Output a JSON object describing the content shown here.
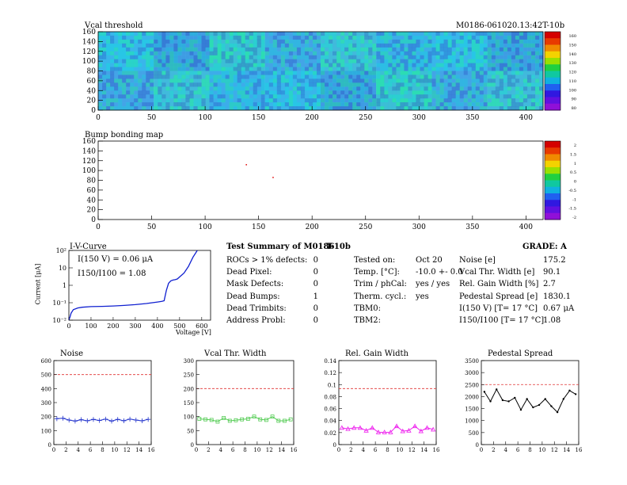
{
  "vcal_map": {
    "title": "Vcal threshold",
    "module_id": "M0186-061020.13:42T-10b",
    "x_ticks": [
      "0",
      "50",
      "100",
      "150",
      "200",
      "250",
      "300",
      "350",
      "400"
    ],
    "y_ticks": [
      "0",
      "20",
      "40",
      "60",
      "80",
      "100",
      "120",
      "140",
      "160"
    ],
    "xlim": [
      0,
      416
    ],
    "ylim": [
      0,
      160
    ],
    "palette_labels": [
      "160",
      "150",
      "140",
      "130",
      "120",
      "110",
      "100",
      "90",
      "80"
    ]
  },
  "bump_map": {
    "title": "Bump bonding map",
    "x_ticks": [
      "0",
      "50",
      "100",
      "150",
      "200",
      "250",
      "300",
      "350",
      "400"
    ],
    "y_ticks": [
      "0",
      "20",
      "40",
      "60",
      "80",
      "100",
      "120",
      "140",
      "160"
    ],
    "palette_labels": [
      "2",
      "1.5",
      "1",
      "0.5",
      "0",
      "-0.5",
      "-1",
      "-1.5",
      "-2"
    ],
    "hits": [
      {
        "x": 138,
        "y": 113
      },
      {
        "x": 163,
        "y": 87
      }
    ]
  },
  "iv_curve": {
    "title": "I-V-Curve",
    "ylabel": "Current [μA]",
    "xlabel": "Voltage [V]",
    "annotation_1": "I(150 V) = 0.06 μA",
    "annotation_2": "I150/I100 = 1.08",
    "x_ticks": [
      "0",
      "100",
      "200",
      "300",
      "400",
      "500",
      "600"
    ],
    "y_ticks": [
      "10²",
      "10",
      "1",
      "10⁻¹",
      "10⁻²"
    ],
    "chart_data": {
      "type": "line",
      "x": [
        0,
        5,
        10,
        20,
        40,
        60,
        100,
        150,
        200,
        250,
        300,
        350,
        400,
        420,
        430,
        440,
        450,
        460,
        470,
        480,
        490,
        500,
        520,
        540,
        560,
        580
      ],
      "y": [
        0.01,
        0.015,
        0.025,
        0.04,
        0.05,
        0.055,
        0.06,
        0.062,
        0.065,
        0.07,
        0.078,
        0.09,
        0.11,
        0.12,
        0.13,
        0.5,
        1.3,
        1.8,
        2.0,
        2.1,
        2.3,
        3.0,
        5.0,
        12,
        40,
        100
      ],
      "xlim": [
        0,
        640
      ],
      "ylim": [
        0.01,
        100
      ],
      "y_scale": "log"
    }
  },
  "summary": {
    "title": "Test Summary of M0186",
    "subtitle": "T-10b",
    "grade": "GRADE:  A",
    "left_rows": [
      {
        "label": "ROCs > 1% defects:",
        "value": "0"
      },
      {
        "label": "Dead Pixel:",
        "value": "0"
      },
      {
        "label": "Mask Defects:",
        "value": "0"
      },
      {
        "label": "Dead Bumps:",
        "value": "1"
      },
      {
        "label": "Dead Trimbits:",
        "value": "0"
      },
      {
        "label": "Address Probl:",
        "value": "0"
      }
    ],
    "mid_rows": [
      {
        "label": "Tested on:",
        "value": "Oct 20"
      },
      {
        "label": "Temp. [°C]:",
        "value": "-10.0 +- 0.0"
      },
      {
        "label": "Trim / phCal:",
        "value": "yes / yes"
      },
      {
        "label": "Therm. cycl.:",
        "value": "yes"
      },
      {
        "label": "TBM0:",
        "value": ""
      },
      {
        "label": "TBM2:",
        "value": ""
      }
    ],
    "right_rows": [
      {
        "label": "Noise [e]",
        "value": "175.2"
      },
      {
        "label": "Vcal Thr. Width [e]",
        "value": "90.1"
      },
      {
        "label": "Rel. Gain Width [%]",
        "value": "2.7"
      },
      {
        "label": "Pedestal Spread [e]",
        "value": "1830.1"
      },
      {
        "label": "I(150 V) [T= 17 °C]",
        "value": "0.67 μA"
      },
      {
        "label": "I150/I100 [T= 17 °C]",
        "value": "1.08"
      }
    ]
  },
  "small_charts": [
    {
      "title": "Noise",
      "color": "#2233cc",
      "marker": "star",
      "ylim": [
        0,
        600
      ],
      "y_ticks": [
        "0",
        "100",
        "200",
        "300",
        "400",
        "500",
        "600"
      ],
      "x_ticks": [
        "0",
        "2",
        "4",
        "6",
        "8",
        "10",
        "12",
        "14",
        "16"
      ],
      "limit": 500,
      "chart_data": {
        "type": "line",
        "x": [
          0.5,
          1.5,
          2.5,
          3.5,
          4.5,
          5.5,
          6.5,
          7.5,
          8.5,
          9.5,
          10.5,
          11.5,
          12.5,
          13.5,
          14.5,
          15.5
        ],
        "y": [
          185,
          188,
          175,
          168,
          178,
          170,
          180,
          172,
          182,
          168,
          180,
          170,
          182,
          175,
          170,
          180
        ]
      }
    },
    {
      "title": "Vcal Thr. Width",
      "color": "#55cc55",
      "marker": "square",
      "ylim": [
        0,
        300
      ],
      "y_ticks": [
        "0",
        "50",
        "100",
        "150",
        "200",
        "250",
        "300"
      ],
      "x_ticks": [
        "0",
        "2",
        "4",
        "6",
        "8",
        "10",
        "12",
        "14",
        "16"
      ],
      "limit": 200,
      "chart_data": {
        "type": "line",
        "x": [
          0.5,
          1.5,
          2.5,
          3.5,
          4.5,
          5.5,
          6.5,
          7.5,
          8.5,
          9.5,
          10.5,
          11.5,
          12.5,
          13.5,
          14.5,
          15.5
        ],
        "y": [
          92,
          90,
          88,
          82,
          95,
          85,
          87,
          90,
          92,
          100,
          90,
          88,
          100,
          85,
          85,
          90
        ]
      }
    },
    {
      "title": "Rel. Gain Width",
      "color": "#ee22ee",
      "marker": "triangle",
      "ylim": [
        0,
        0.15
      ],
      "y_ticks": [
        "0",
        "0.02",
        "0.04",
        "0.06",
        "0.08",
        "0.1",
        "0.12",
        "0.14"
      ],
      "x_ticks": [
        "0",
        "2",
        "4",
        "6",
        "8",
        "10",
        "12",
        "14",
        "16"
      ],
      "limit": 0.1,
      "chart_data": {
        "type": "line",
        "x": [
          0.5,
          1.5,
          2.5,
          3.5,
          4.5,
          5.5,
          6.5,
          7.5,
          8.5,
          9.5,
          10.5,
          11.5,
          12.5,
          13.5,
          14.5,
          15.5
        ],
        "y": [
          0.03,
          0.028,
          0.03,
          0.03,
          0.025,
          0.03,
          0.022,
          0.022,
          0.022,
          0.033,
          0.024,
          0.025,
          0.033,
          0.024,
          0.03,
          0.027
        ]
      }
    },
    {
      "title": "Pedestal Spread",
      "color": "#000000",
      "marker": "dot",
      "ylim": [
        0,
        3500
      ],
      "y_ticks": [
        "0",
        "500",
        "1000",
        "1500",
        "2000",
        "2500",
        "3000",
        "3500"
      ],
      "x_ticks": [
        "0",
        "2",
        "4",
        "6",
        "8",
        "10",
        "12",
        "14",
        "16"
      ],
      "limit": 2500,
      "chart_data": {
        "type": "line",
        "x": [
          0.5,
          1.5,
          2.5,
          3.5,
          4.5,
          5.5,
          6.5,
          7.5,
          8.5,
          9.5,
          10.5,
          11.5,
          12.5,
          13.5,
          14.5,
          15.5
        ],
        "y": [
          2200,
          1800,
          2300,
          1850,
          1800,
          1950,
          1450,
          1900,
          1550,
          1650,
          1900,
          1600,
          1350,
          1900,
          2250,
          2100
        ]
      }
    }
  ]
}
